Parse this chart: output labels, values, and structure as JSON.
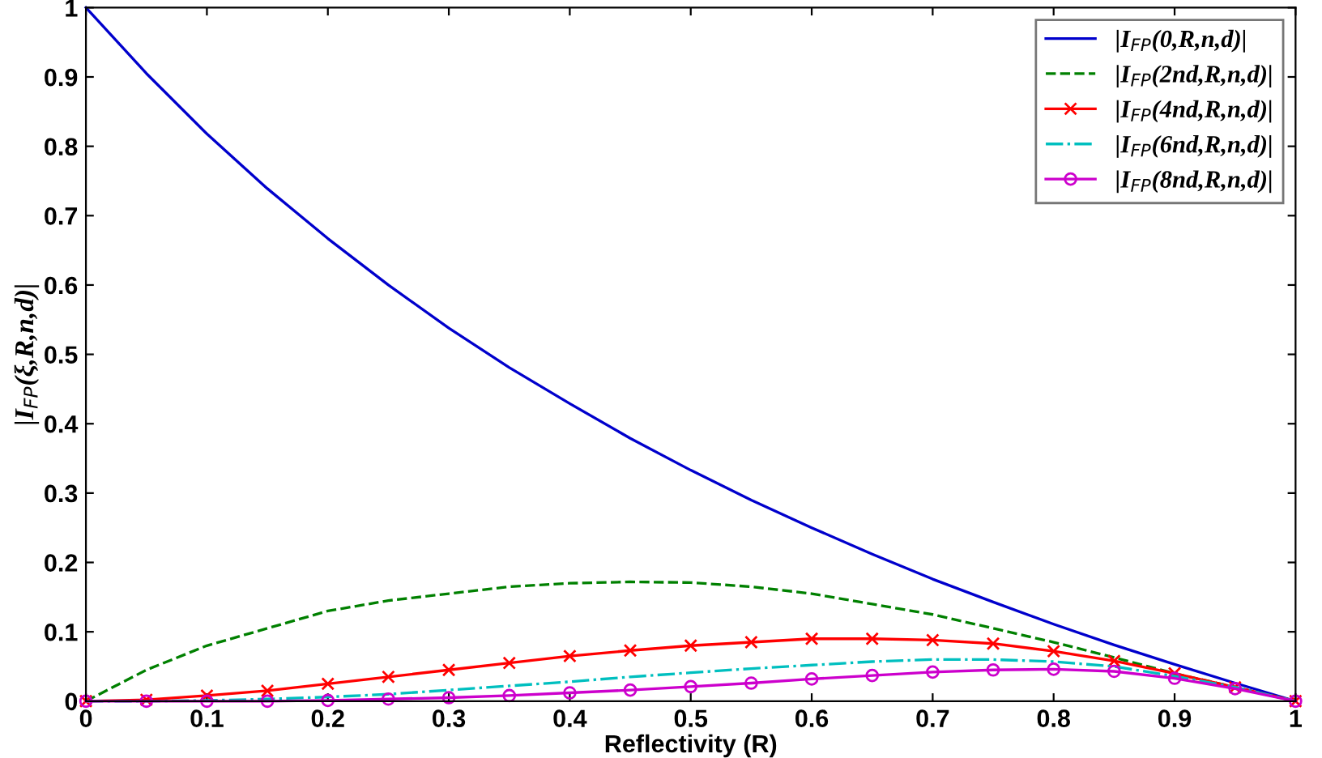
{
  "chart_data": {
    "type": "line",
    "xlabel": "Reflectivity (R)",
    "ylabel": "|I$_{FP}$(ξ,R,n,d)|",
    "x": [
      0,
      0.05,
      0.1,
      0.15,
      0.2,
      0.25,
      0.3,
      0.35,
      0.4,
      0.45,
      0.5,
      0.55,
      0.6,
      0.65,
      0.7,
      0.75,
      0.8,
      0.85,
      0.9,
      0.95,
      1
    ],
    "series": [
      {
        "name": "|I$_{FP}$(0,R,n,d)|",
        "color": "#0000cc",
        "line_style": "solid",
        "marker": "none",
        "values": [
          1,
          0.905,
          0.818,
          0.739,
          0.667,
          0.6,
          0.538,
          0.481,
          0.429,
          0.379,
          0.333,
          0.29,
          0.25,
          0.212,
          0.176,
          0.143,
          0.111,
          0.081,
          0.053,
          0.026,
          0
        ]
      },
      {
        "name": "|I$_{FP}$(2nd,R,n,d)|",
        "color": "#008000",
        "line_style": "dashed",
        "marker": "none",
        "values": [
          0,
          0.045,
          0.08,
          0.105,
          0.13,
          0.145,
          0.155,
          0.165,
          0.17,
          0.172,
          0.171,
          0.165,
          0.155,
          0.14,
          0.125,
          0.105,
          0.085,
          0.063,
          0.04,
          0.02,
          0
        ]
      },
      {
        "name": "|I$_{FP}$(4nd,R,n,d)|",
        "color": "#ff0000",
        "line_style": "solid",
        "marker": "cross",
        "values": [
          0,
          0.002,
          0.008,
          0.015,
          0.025,
          0.035,
          0.045,
          0.055,
          0.065,
          0.073,
          0.08,
          0.085,
          0.09,
          0.09,
          0.088,
          0.083,
          0.072,
          0.058,
          0.04,
          0.02,
          0
        ]
      },
      {
        "name": "|I$_{FP}$(6nd,R,n,d)|",
        "color": "#00bfbf",
        "line_style": "dashdot",
        "marker": "none",
        "values": [
          0,
          0,
          0.001,
          0.003,
          0.006,
          0.01,
          0.016,
          0.022,
          0.028,
          0.035,
          0.041,
          0.047,
          0.052,
          0.057,
          0.06,
          0.06,
          0.057,
          0.05,
          0.036,
          0.02,
          0
        ]
      },
      {
        "name": "|I$_{FP}$(8nd,R,n,d)|",
        "color": "#cc00cc",
        "line_style": "solid",
        "marker": "circle",
        "values": [
          0,
          0,
          0,
          0,
          0.001,
          0.003,
          0.005,
          0.008,
          0.012,
          0.016,
          0.021,
          0.026,
          0.032,
          0.037,
          0.042,
          0.045,
          0.046,
          0.043,
          0.033,
          0.018,
          0
        ]
      }
    ],
    "xlim": [
      0,
      1
    ],
    "ylim": [
      0,
      1
    ],
    "xticks": [
      0,
      0.1,
      0.2,
      0.3,
      0.4,
      0.5,
      0.6,
      0.7,
      0.8,
      0.9,
      1
    ],
    "yticks": [
      0,
      0.1,
      0.2,
      0.3,
      0.4,
      0.5,
      0.6,
      0.7,
      0.8,
      0.9,
      1
    ],
    "grid": false,
    "legend": "top right"
  }
}
